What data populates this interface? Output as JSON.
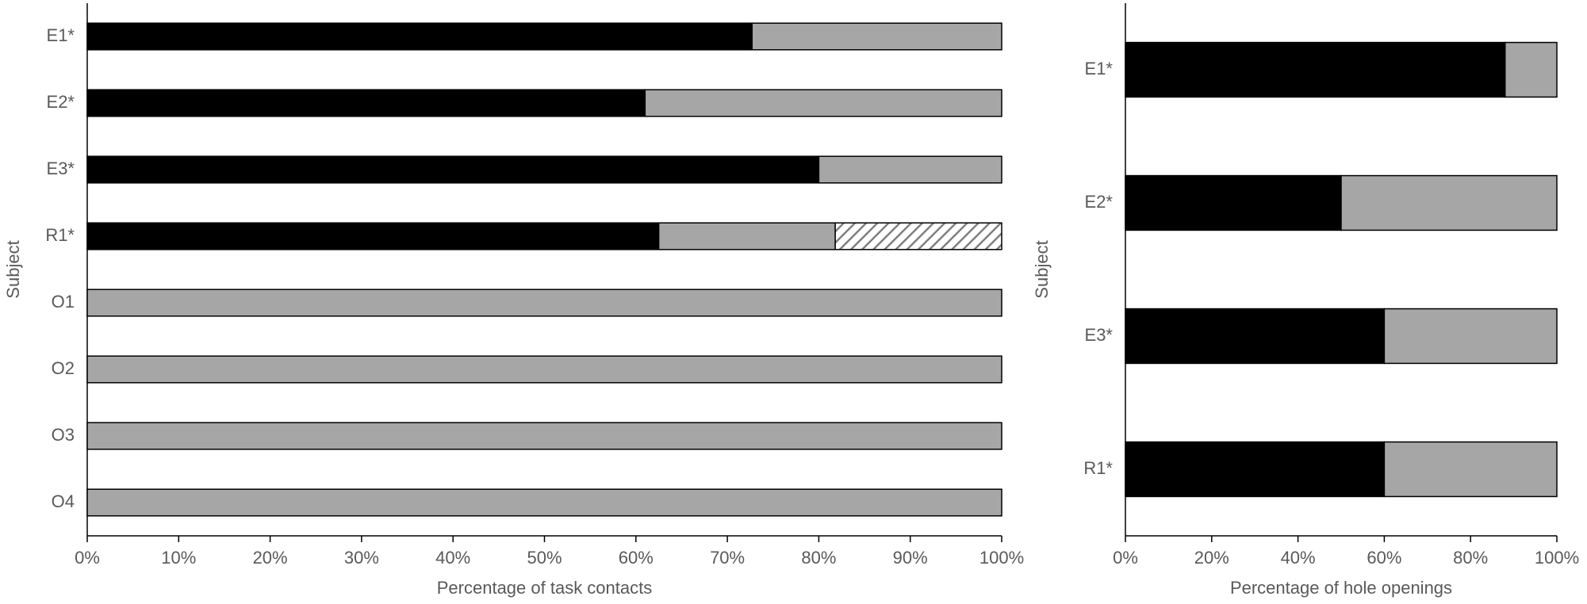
{
  "chart_data": [
    {
      "type": "stacked-bar-horizontal",
      "y_label": "Subject",
      "x_label": "Percentage of task contacts",
      "categories": [
        "E1*",
        "E2*",
        "E3*",
        "R1*",
        "O1",
        "O2",
        "O3",
        "O4"
      ],
      "series": [
        {
          "color": "#000000",
          "values": [
            72.7,
            61,
            80,
            62.5,
            0,
            0,
            0,
            0
          ]
        },
        {
          "color": "#a6a6a6",
          "values": [
            27.3,
            39,
            20,
            19.3,
            100,
            100,
            100,
            100
          ]
        },
        {
          "color": "#7f7f7f",
          "hatch": true,
          "values": [
            0,
            0,
            0,
            18.2,
            0,
            0,
            0,
            0
          ]
        }
      ],
      "xlim": [
        0,
        100
      ],
      "xticks": [
        {
          "value": 0,
          "label": "0%"
        },
        {
          "value": 10,
          "label": "10%"
        },
        {
          "value": 20,
          "label": "20%"
        },
        {
          "value": 30,
          "label": "30%"
        },
        {
          "value": 40,
          "label": "40%"
        },
        {
          "value": 50,
          "label": "50%"
        },
        {
          "value": 60,
          "label": "60%"
        },
        {
          "value": 70,
          "label": "70%"
        },
        {
          "value": 80,
          "label": "80%"
        },
        {
          "value": 90,
          "label": "90%"
        },
        {
          "value": 100,
          "label": "100%"
        }
      ]
    },
    {
      "type": "stacked-bar-horizontal",
      "y_label": "Subject",
      "x_label": "Percentage of hole openings",
      "categories": [
        "E1*",
        "E2*",
        "E3*",
        "R1*"
      ],
      "series": [
        {
          "color": "#000000",
          "values": [
            88,
            50,
            60,
            60
          ]
        },
        {
          "color": "#a6a6a6",
          "values": [
            12,
            50,
            40,
            40
          ]
        }
      ],
      "xlim": [
        0,
        100
      ],
      "xticks": [
        {
          "value": 0,
          "label": "0%"
        },
        {
          "value": 20,
          "label": "20%"
        },
        {
          "value": 40,
          "label": "40%"
        },
        {
          "value": 60,
          "label": "60%"
        },
        {
          "value": 80,
          "label": "80%"
        },
        {
          "value": 100,
          "label": "100%"
        }
      ]
    }
  ]
}
